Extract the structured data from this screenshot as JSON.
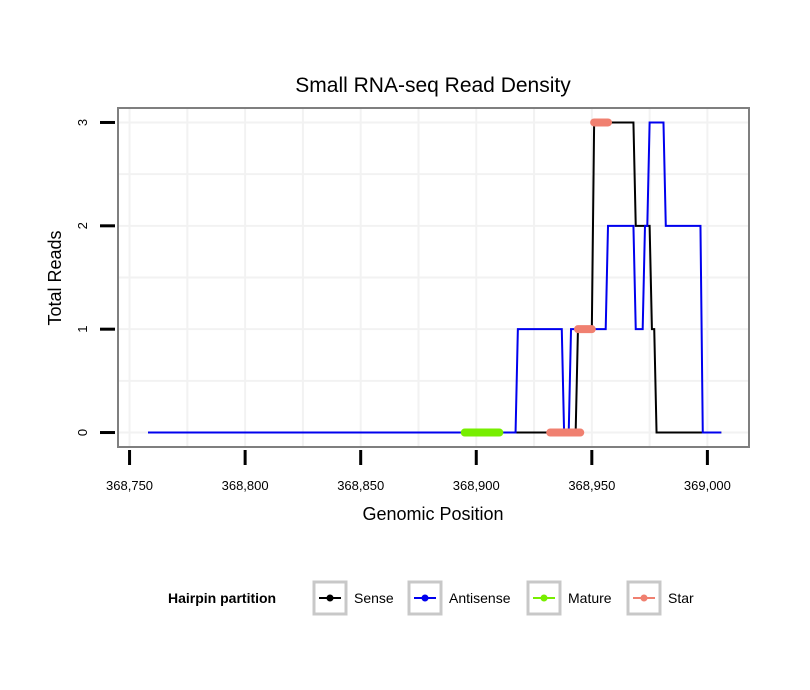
{
  "chart_data": {
    "type": "line",
    "title": "Small RNA-seq Read Density",
    "xlabel": "Genomic Position",
    "ylabel": "Total Reads",
    "xlim": [
      368745,
      369018
    ],
    "ylim": [
      -0.14,
      3.14
    ],
    "x_ticks": [
      368750,
      368800,
      368850,
      368900,
      368950,
      369000
    ],
    "x_tick_labels": [
      "368,750",
      "368,800",
      "368,850",
      "368,900",
      "368,950",
      "369,000"
    ],
    "y_ticks": [
      0,
      1,
      2,
      3
    ],
    "y_tick_labels": [
      "0",
      "1",
      "2",
      "3"
    ],
    "grid": true,
    "legend_title": "Hairpin partition",
    "legend_position": "bottom",
    "series": [
      {
        "name": "Sense",
        "color": "#000000",
        "kind": "line",
        "x": [
          368758,
          368943,
          368944,
          368950,
          368951,
          368968,
          368969,
          368975,
          368976,
          368977,
          368978,
          369006
        ],
        "y": [
          0,
          0,
          1,
          1,
          3,
          3,
          2,
          2,
          1,
          1,
          0,
          0
        ]
      },
      {
        "name": "Antisense",
        "color": "#0000ee",
        "kind": "line",
        "x": [
          368758,
          368917,
          368918,
          368937,
          368938,
          368940,
          368941,
          368953,
          368954,
          368956,
          368957,
          368968,
          368969,
          368972,
          368973,
          368974,
          368975,
          368981,
          368982,
          368997,
          368998,
          369006
        ],
        "y": [
          0,
          0,
          1,
          1,
          0,
          0,
          1,
          1,
          1,
          1,
          2,
          2,
          1,
          1,
          2,
          2,
          3,
          3,
          2,
          2,
          0,
          0
        ]
      },
      {
        "name": "Mature",
        "color": "#77ee00",
        "kind": "segment",
        "x": [
          368895,
          368910
        ],
        "y": [
          0,
          0
        ]
      },
      {
        "name": "Star",
        "color": "#f08070",
        "kind": "segment",
        "segments": [
          {
            "x": [
              368932,
              368945
            ],
            "y": [
              0,
              0
            ]
          },
          {
            "x": [
              368944,
              368950
            ],
            "y": [
              1,
              1
            ]
          },
          {
            "x": [
              368951,
              368957
            ],
            "y": [
              3,
              3
            ]
          }
        ]
      }
    ]
  }
}
